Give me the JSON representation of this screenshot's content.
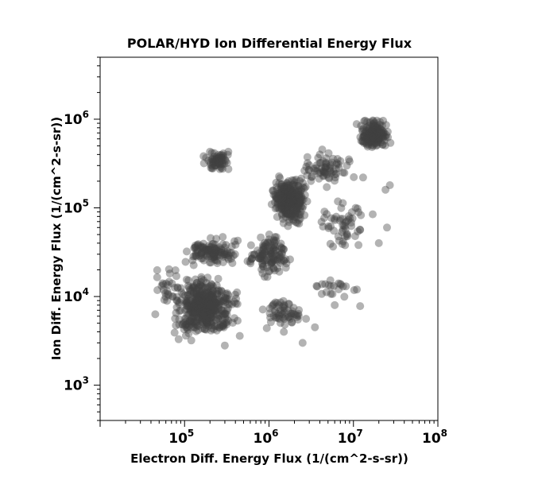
{
  "chart_data": {
    "type": "scatter",
    "title": "POLAR/HYD  Ion Differential Energy Flux",
    "xlabel": "Electron Diff. Energy Flux (1/(cm^2-s-sr))",
    "ylabel": "Ion Diff. Energy Flux (1/(cm^2-s-sr))",
    "x_scale": "log",
    "y_scale": "log",
    "xlim": [
      10000,
      100000000
    ],
    "ylim": [
      400,
      5000000
    ],
    "x_tick_labels": [
      {
        "value": 100000,
        "base": "10",
        "exp": "5"
      },
      {
        "value": 1000000,
        "base": "10",
        "exp": "6"
      },
      {
        "value": 10000000,
        "base": "10",
        "exp": "7"
      },
      {
        "value": 100000000,
        "base": "10",
        "exp": "8"
      }
    ],
    "y_tick_labels": [
      {
        "value": 1000,
        "base": "10",
        "exp": "3"
      },
      {
        "value": 10000,
        "base": "10",
        "exp": "4"
      },
      {
        "value": 100000,
        "base": "10",
        "exp": "5"
      },
      {
        "value": 1000000,
        "base": "10",
        "exp": "6"
      }
    ],
    "grid": false,
    "marker_color": "#404040",
    "marker_opacity": 0.4,
    "clusters": [
      {
        "x_range": [
          150000,
          400000
        ],
        "y_range": [
          250000,
          450000
        ],
        "count": 70
      },
      {
        "x_range": [
          1000000,
          3000000
        ],
        "y_range": [
          60000,
          250000
        ],
        "count": 350
      },
      {
        "x_range": [
          10000000,
          30000000
        ],
        "y_range": [
          400000,
          1100000
        ],
        "count": 160
      },
      {
        "x_range": [
          2000000,
          12000000
        ],
        "y_range": [
          150000,
          500000
        ],
        "count": 70
      },
      {
        "x_range": [
          500000,
          2000000
        ],
        "y_range": [
          15000,
          60000
        ],
        "count": 120
      },
      {
        "x_range": [
          60000,
          500000
        ],
        "y_range": [
          3000,
          20000
        ],
        "count": 450
      },
      {
        "x_range": [
          80000,
          500000
        ],
        "y_range": [
          20000,
          50000
        ],
        "count": 120
      },
      {
        "x_range": [
          700000,
          3500000
        ],
        "y_range": [
          4000,
          10000
        ],
        "count": 60
      },
      {
        "x_range": [
          3000000,
          20000000
        ],
        "y_range": [
          30000,
          150000
        ],
        "count": 55
      },
      {
        "x_range": [
          3000000,
          15000000
        ],
        "y_range": [
          6000,
          20000
        ],
        "count": 20
      },
      {
        "x_range": [
          40000,
          100000
        ],
        "y_range": [
          5000,
          30000
        ],
        "count": 25
      }
    ],
    "points": [
      [
        45000,
        6300
      ],
      [
        85000,
        3300
      ],
      [
        120000,
        3200
      ],
      [
        300000,
        2800
      ],
      [
        450000,
        3600
      ],
      [
        1500000,
        4000
      ],
      [
        3500000,
        4500
      ],
      [
        12000000,
        7800
      ],
      [
        20000000,
        40000
      ],
      [
        25000000,
        60000
      ],
      [
        27000000,
        180000
      ],
      [
        4000000,
        400000
      ],
      [
        13000000,
        220000
      ],
      [
        24000000,
        160000
      ],
      [
        6000000,
        8000
      ],
      [
        11000000,
        12000
      ],
      [
        3600000,
        280000
      ],
      [
        200000,
        430000
      ],
      [
        330000,
        430000
      ],
      [
        2500000,
        3000
      ]
    ]
  }
}
